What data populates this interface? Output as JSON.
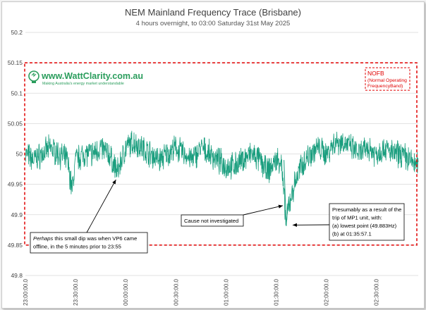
{
  "chart_data": {
    "type": "line",
    "title": "NEM Mainland Frequency Trace (Brisbane)",
    "subtitle": "4 hours overnight, to 03:00 Saturday 31st May 2025",
    "xlabel": "",
    "ylabel": "",
    "ylim": [
      49.8,
      50.2
    ],
    "yticks": [
      "49.8",
      "49.85",
      "49.9",
      "49.95",
      "50",
      "50.05",
      "50.1",
      "50.15",
      "50.2"
    ],
    "xlim": [
      "23:00:00.0",
      "02:55:00.0"
    ],
    "xticks": [
      "23:00:00.0",
      "23:30:00.0",
      "00:00:00.0",
      "00:30:00.0",
      "01:00:00.0",
      "01:30:00.0",
      "02:00:00.0",
      "02:30:00.0"
    ],
    "grid": true,
    "series_color": "#1a9e7e",
    "series": [
      {
        "points": [
          [
            "23:00:00",
            50.0
          ],
          [
            "23:05:00",
            49.99
          ],
          [
            "23:10:00",
            50.0
          ],
          [
            "23:15:00",
            50.01
          ],
          [
            "23:20:00",
            50.0
          ],
          [
            "23:25:00",
            49.99
          ],
          [
            "23:28:00",
            49.94
          ],
          [
            "23:30:00",
            49.99
          ],
          [
            "23:35:00",
            50.0
          ],
          [
            "23:40:00",
            50.0
          ],
          [
            "23:45:00",
            50.01
          ],
          [
            "23:50:00",
            50.0
          ],
          [
            "23:55:00",
            49.97
          ],
          [
            "00:00:00",
            50.01
          ],
          [
            "00:05:00",
            50.02
          ],
          [
            "00:10:00",
            50.01
          ],
          [
            "00:15:00",
            50.0
          ],
          [
            "00:20:00",
            49.99
          ],
          [
            "00:25:00",
            50.0
          ],
          [
            "00:30:00",
            50.01
          ],
          [
            "00:35:00",
            50.0
          ],
          [
            "00:40:00",
            49.99
          ],
          [
            "00:45:00",
            50.01
          ],
          [
            "00:50:00",
            50.0
          ],
          [
            "00:55:00",
            49.99
          ],
          [
            "01:00:00",
            49.98
          ],
          [
            "01:05:00",
            49.98
          ],
          [
            "01:10:00",
            49.99
          ],
          [
            "01:15:00",
            50.0
          ],
          [
            "01:20:00",
            49.99
          ],
          [
            "01:25:00",
            49.97
          ],
          [
            "01:30:00",
            49.99
          ],
          [
            "01:33:00",
            49.99
          ],
          [
            "01:35:57",
            49.883
          ],
          [
            "01:38:00",
            49.92
          ],
          [
            "01:41:00",
            49.95
          ],
          [
            "01:45:00",
            49.98
          ],
          [
            "01:50:00",
            50.0
          ],
          [
            "01:55:00",
            50.01
          ],
          [
            "02:00:00",
            50.0
          ],
          [
            "02:05:00",
            50.02
          ],
          [
            "02:10:00",
            50.02
          ],
          [
            "02:15:00",
            50.01
          ],
          [
            "02:20:00",
            50.0
          ],
          [
            "02:25:00",
            50.01
          ],
          [
            "02:30:00",
            50.0
          ],
          [
            "02:35:00",
            50.01
          ],
          [
            "02:40:00",
            50.0
          ],
          [
            "02:45:00",
            50.0
          ],
          [
            "02:50:00",
            49.99
          ],
          [
            "02:55:00",
            49.98
          ]
        ]
      }
    ],
    "band": {
      "label": "NOFB",
      "sublabel_line1": "(Normal Operating",
      "sublabel_line2": "FrequencyBand)",
      "low": 49.85,
      "high": 50.15,
      "color": "#e00000"
    },
    "annotations": [
      {
        "lines": [
          "Perhaps this small dip was when VP6 came",
          "offline, in the 5 minutes prior to 23:55"
        ],
        "target": [
          "23:55:00",
          49.96
        ]
      },
      {
        "lines": [
          "Cause not investigated"
        ],
        "target": [
          "01:34:00",
          49.915
        ]
      },
      {
        "lines": [
          "Presumably as a result of the",
          "trip of MP1 unit, with:",
          "(a)  lowest point (49.883Hz)",
          "(b)  at 01:35:57.1"
        ],
        "target": [
          "01:36:30",
          49.883
        ]
      }
    ]
  },
  "logo": {
    "text": "www.WattClarity.com.au",
    "tagline": "Making Australia's energy market understandable"
  }
}
